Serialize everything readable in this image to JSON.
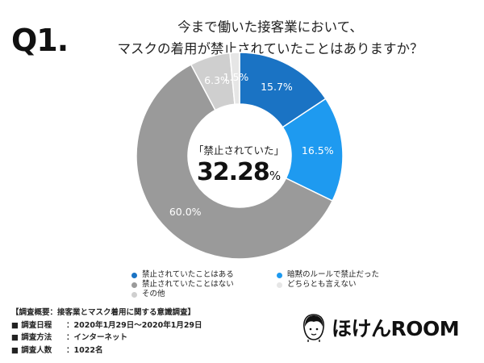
{
  "header": {
    "q_label": "Q1.",
    "title_line1": "今まで働いた接客業において、",
    "title_line2": "マスクの着用が禁止されていたことはありますか？"
  },
  "chart_data": {
    "type": "pie",
    "categories": [
      "禁止されていたことはある",
      "暗黙のルールで禁止だった",
      "禁止されていたことはない",
      "その他",
      "どちらとも言えない"
    ],
    "values": [
      15.7,
      16.5,
      60.0,
      6.3,
      1.5
    ],
    "value_labels": [
      "15.7%",
      "16.5%",
      "60.0%",
      "6.3%",
      "1.5%"
    ],
    "colors": [
      "#1a73c4",
      "#1e9af0",
      "#9a9a9a",
      "#cfcfcf",
      "#e6e6e6"
    ],
    "donut": true
  },
  "center": {
    "label": "「禁止されていた」",
    "value": "32.28",
    "unit": "%"
  },
  "legend": [
    {
      "label": "禁止されていたことはある",
      "color": "#1a73c4"
    },
    {
      "label": "暗黙のルールで禁止だった",
      "color": "#1e9af0"
    },
    {
      "label": "禁止されていたことはない",
      "color": "#9a9a9a"
    },
    {
      "label": "どちらとも言えない",
      "color": "#e6e6e6"
    },
    {
      "label": "その他",
      "color": "#cfcfcf"
    }
  ],
  "survey": {
    "heading": "【調査概要：接客業とマスク着用に関する意識調査】",
    "rows": [
      {
        "key": "■ 調査日程",
        "value": "：2020年1月29日〜2020年1月29日"
      },
      {
        "key": "■ 調査方法",
        "value": "：インターネット"
      },
      {
        "key": "■ 調査人数",
        "value": "：1022名"
      }
    ]
  },
  "brand": {
    "name": "ほけんROOM",
    "logo_icon": "person-face-icon"
  }
}
